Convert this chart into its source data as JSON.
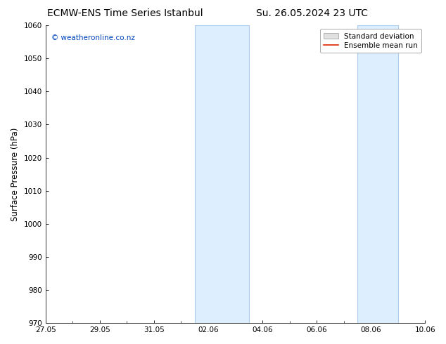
{
  "title_left": "ECMW-ENS Time Series Istanbul",
  "title_right": "Su. 26.05.2024 23 UTC",
  "ylabel": "Surface Pressure (hPa)",
  "ylim": [
    970,
    1060
  ],
  "yticks": [
    970,
    980,
    990,
    1000,
    1010,
    1020,
    1030,
    1040,
    1050,
    1060
  ],
  "xlabel_ticks": [
    "27.05",
    "29.05",
    "31.05",
    "02.06",
    "04.06",
    "06.06",
    "08.06",
    "10.06"
  ],
  "x_tick_positions": [
    0,
    2,
    4,
    6,
    8,
    10,
    12,
    14
  ],
  "x_minor_positions": [
    1,
    3,
    5,
    7,
    9,
    11,
    13
  ],
  "xlim": [
    0,
    14
  ],
  "shaded_regions": [
    {
      "x_start": 5.5,
      "x_end": 7.5
    },
    {
      "x_start": 11.5,
      "x_end": 13.0
    }
  ],
  "shaded_color": "#ddeeff",
  "shaded_edge_color": "#aaccee",
  "background_color": "#ffffff",
  "watermark_text": "© weatheronline.co.nz",
  "watermark_color": "#0044bb",
  "legend_std_label": "Standard deviation",
  "legend_mean_label": "Ensemble mean run",
  "legend_std_facecolor": "#e0e0e0",
  "legend_std_edgecolor": "#999999",
  "legend_mean_color": "#dd2200",
  "title_fontsize": 10,
  "tick_fontsize": 7.5,
  "ylabel_fontsize": 8.5,
  "watermark_fontsize": 7.5,
  "legend_fontsize": 7.5
}
